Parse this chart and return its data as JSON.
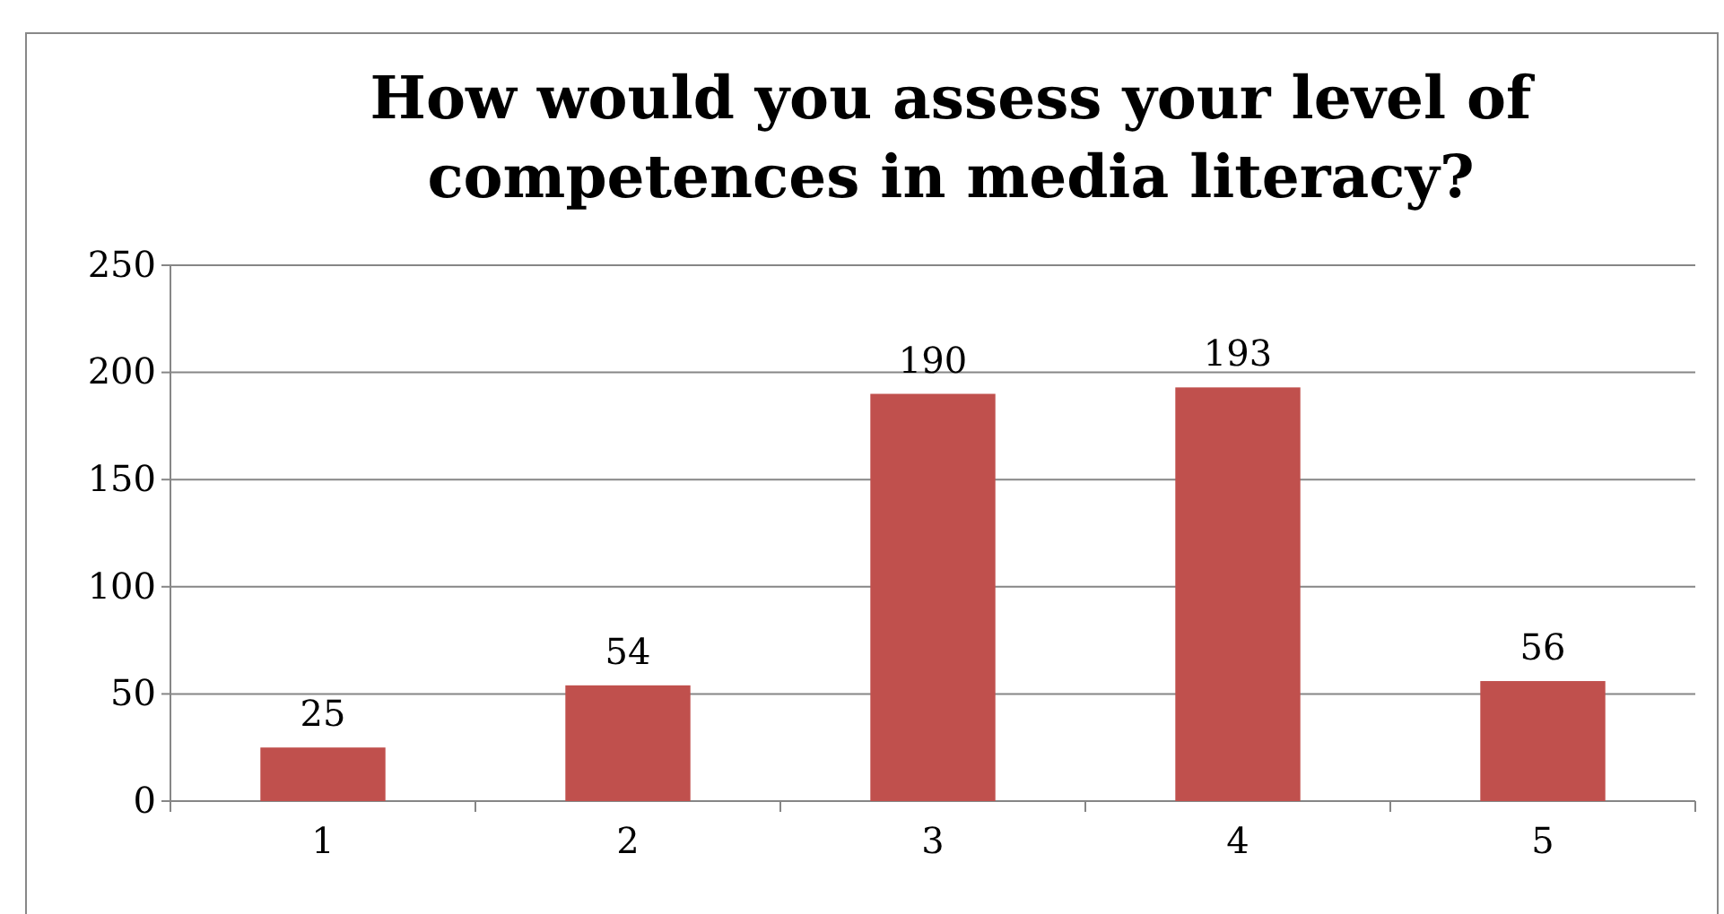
{
  "chart_data": {
    "type": "bar",
    "title": "How would you assess your level of competences in media literacy?",
    "categories": [
      "1",
      "2",
      "3",
      "4",
      "5"
    ],
    "values": [
      25,
      54,
      190,
      193,
      56
    ],
    "color": "#c0504d",
    "ylim": [
      0,
      250
    ],
    "yticks": [
      0,
      50,
      100,
      150,
      200,
      250
    ],
    "grid": "y",
    "data_labels": true
  }
}
